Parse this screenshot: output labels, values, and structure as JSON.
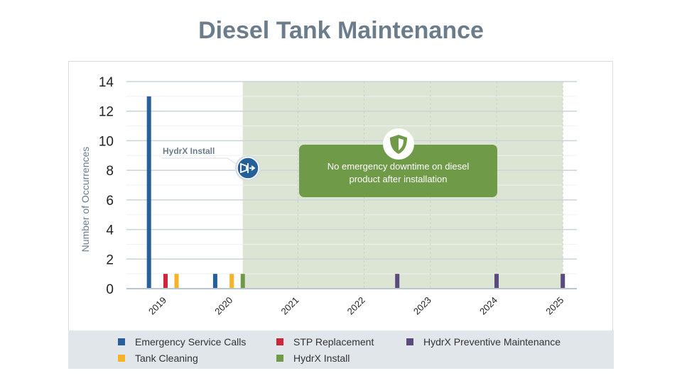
{
  "chart_data": {
    "type": "bar",
    "title": "Diesel Tank Maintenance",
    "ylabel": "Number of Occurrences",
    "xlabel": "",
    "ylim": [
      0,
      14
    ],
    "yticks": [
      0,
      2,
      4,
      6,
      8,
      10,
      12,
      14
    ],
    "xlim": [
      "2018-07",
      "2025-03"
    ],
    "xticks": [
      "2019",
      "2020",
      "2021",
      "2022",
      "2023",
      "2024",
      "2025"
    ],
    "grid": true,
    "legend_placement": "bottom",
    "series": [
      {
        "name": "Emergency Service Calls",
        "color": "#25609a",
        "points": [
          {
            "x": "2018-10",
            "y": 13
          },
          {
            "x": "2019-10",
            "y": 1
          }
        ]
      },
      {
        "name": "STP Replacement",
        "color": "#d0263a",
        "points": [
          {
            "x": "2019-01",
            "y": 1
          }
        ]
      },
      {
        "name": "HydrX Preventive Maintenance",
        "color": "#5b4a7d",
        "points": [
          {
            "x": "2022-07",
            "y": 1
          },
          {
            "x": "2024-01",
            "y": 1
          },
          {
            "x": "2025-01",
            "y": 1
          }
        ]
      },
      {
        "name": "Tank Cleaning",
        "color": "#f7b22a",
        "points": [
          {
            "x": "2019-03",
            "y": 1
          },
          {
            "x": "2020-01",
            "y": 1
          }
        ]
      },
      {
        "name": "HydrX Install",
        "color": "#6f9a48",
        "points": [
          {
            "x": "2020-03",
            "y": 1
          }
        ]
      }
    ],
    "shaded_region": {
      "from": "2020-03",
      "to": "2025-01",
      "color": "#dce5d3"
    },
    "annotations": [
      {
        "text": "HydrX Install",
        "icon": "hydrx-install-icon",
        "at": "2020-03"
      },
      {
        "text": "No emergency downtime on diesel product after installation",
        "icon": "shield-icon"
      }
    ]
  }
}
